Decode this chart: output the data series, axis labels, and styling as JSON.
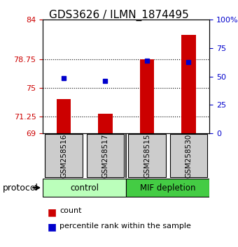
{
  "title": "GDS3626 / ILMN_1874495",
  "samples": [
    "GSM258516",
    "GSM258517",
    "GSM258515",
    "GSM258530"
  ],
  "bar_values": [
    73.5,
    71.6,
    78.75,
    82.0
  ],
  "bar_base": 69,
  "bar_color": "#cc0000",
  "percentile_values": [
    76.3,
    75.9,
    78.55,
    78.4
  ],
  "percentile_color": "#0000cc",
  "left_yticks": [
    69,
    71.25,
    75,
    78.75,
    84
  ],
  "left_ytick_labels": [
    "69",
    "71.25",
    "75",
    "78.75",
    "84"
  ],
  "right_yticks": [
    0,
    25,
    50,
    75,
    100
  ],
  "right_ytick_labels": [
    "0",
    "25",
    "50",
    "75",
    "100%"
  ],
  "ymin": 69,
  "ymax": 84,
  "groups": [
    {
      "label": "control",
      "samples": [
        "GSM258516",
        "GSM258517"
      ],
      "color": "#aaffaa"
    },
    {
      "label": "MIF depletion",
      "samples": [
        "GSM258515",
        "GSM258530"
      ],
      "color": "#55dd55"
    }
  ],
  "protocol_label": "protocol",
  "legend_count_label": "count",
  "legend_percentile_label": "percentile rank within the sample",
  "sample_box_color": "#cccccc",
  "dotted_line_color": "#333333",
  "title_fontsize": 11,
  "axis_fontsize": 8,
  "tick_fontsize": 8,
  "left_tick_color": "#cc0000",
  "right_tick_color": "#0000cc"
}
